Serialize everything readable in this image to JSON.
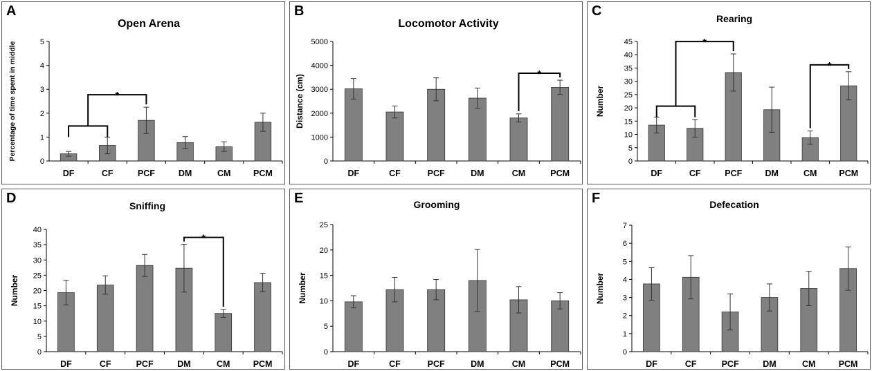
{
  "colors": {
    "bar": "#808080",
    "axis": "#000000",
    "panel_border": "#555555"
  },
  "chart_data": [
    {
      "type": "bar",
      "letter": "A",
      "title": "Open Arena",
      "ylabel": "Percentage of time spent in middle",
      "xlabel": "",
      "categories": [
        "DF",
        "CF",
        "PCF",
        "DM",
        "CM",
        "PCM"
      ],
      "values": [
        0.3,
        0.65,
        1.7,
        0.77,
        0.6,
        1.62
      ],
      "errors": [
        0.1,
        0.35,
        0.55,
        0.25,
        0.2,
        0.38
      ],
      "ylim": [
        0,
        5
      ],
      "yticks": [
        0,
        1,
        2,
        3,
        4,
        5
      ],
      "grid": false,
      "significance": [
        {
          "type": "group",
          "left": [
            0,
            1
          ],
          "right": [
            2
          ],
          "label": "*"
        }
      ]
    },
    {
      "type": "bar",
      "letter": "B",
      "title": "Locomotor Activity",
      "ylabel": "Distance (cm)",
      "xlabel": "",
      "categories": [
        "DF",
        "CF",
        "PCF",
        "DM",
        "CM",
        "PCM"
      ],
      "values": [
        3020,
        2050,
        3000,
        2630,
        1800,
        3080
      ],
      "errors": [
        430,
        250,
        480,
        420,
        170,
        300
      ],
      "ylim": [
        0,
        5000
      ],
      "yticks": [
        0,
        1000,
        2000,
        3000,
        4000,
        5000
      ],
      "grid": false,
      "significance": [
        {
          "type": "pair",
          "left": [
            4
          ],
          "right": [
            5
          ],
          "label": "*"
        }
      ]
    },
    {
      "type": "bar",
      "letter": "C",
      "title": "Rearing",
      "ylabel": "Number",
      "xlabel": "",
      "categories": [
        "DF",
        "CF",
        "PCF",
        "DM",
        "CM",
        "PCM"
      ],
      "values": [
        13.5,
        12.3,
        33.3,
        19.3,
        8.8,
        28.3
      ],
      "errors": [
        3.0,
        3.3,
        7.0,
        8.5,
        2.5,
        5.3
      ],
      "ylim": [
        0,
        45
      ],
      "yticks": [
        0,
        5,
        10,
        15,
        20,
        25,
        30,
        35,
        40,
        45
      ],
      "grid": false,
      "significance": [
        {
          "type": "group",
          "left": [
            0,
            1
          ],
          "right": [
            2
          ],
          "label": "*"
        },
        {
          "type": "pair",
          "left": [
            4
          ],
          "right": [
            5
          ],
          "label": "*"
        }
      ]
    },
    {
      "type": "bar",
      "letter": "D",
      "title": "Sniffing",
      "ylabel": "Number",
      "xlabel": "",
      "categories": [
        "DF",
        "CF",
        "PCF",
        "DM",
        "CM",
        "PCM"
      ],
      "values": [
        19.3,
        21.8,
        28.2,
        27.3,
        12.5,
        22.6
      ],
      "errors": [
        4.0,
        3.0,
        3.6,
        7.8,
        1.3,
        3.0
      ],
      "ylim": [
        0,
        40
      ],
      "yticks": [
        0,
        5,
        10,
        15,
        20,
        25,
        30,
        35,
        40
      ],
      "grid": false,
      "significance": [
        {
          "type": "pair",
          "left": [
            3
          ],
          "right": [
            4
          ],
          "label": "*"
        }
      ]
    },
    {
      "type": "bar",
      "letter": "E",
      "title": "Grooming",
      "ylabel": "Number",
      "xlabel": "",
      "categories": [
        "DF",
        "CF",
        "PCF",
        "DM",
        "CM",
        "PCM"
      ],
      "values": [
        9.8,
        12.2,
        12.2,
        14.0,
        10.2,
        10.0
      ],
      "errors": [
        1.2,
        2.4,
        2.0,
        6.1,
        2.6,
        1.6
      ],
      "ylim": [
        0,
        25
      ],
      "yticks": [
        0,
        5,
        10,
        15,
        20,
        25
      ],
      "grid": false,
      "significance": []
    },
    {
      "type": "bar",
      "letter": "F",
      "title": "Defecation",
      "ylabel": "Number",
      "xlabel": "",
      "categories": [
        "DF",
        "CF",
        "PCF",
        "DM",
        "CM",
        "PCM"
      ],
      "values": [
        3.75,
        4.12,
        2.2,
        3.0,
        3.5,
        4.6
      ],
      "errors": [
        0.9,
        1.2,
        1.0,
        0.75,
        0.95,
        1.2
      ],
      "ylim": [
        0,
        7
      ],
      "yticks": [
        0,
        1,
        2,
        3,
        4,
        5,
        6,
        7
      ],
      "grid": false,
      "significance": []
    }
  ]
}
